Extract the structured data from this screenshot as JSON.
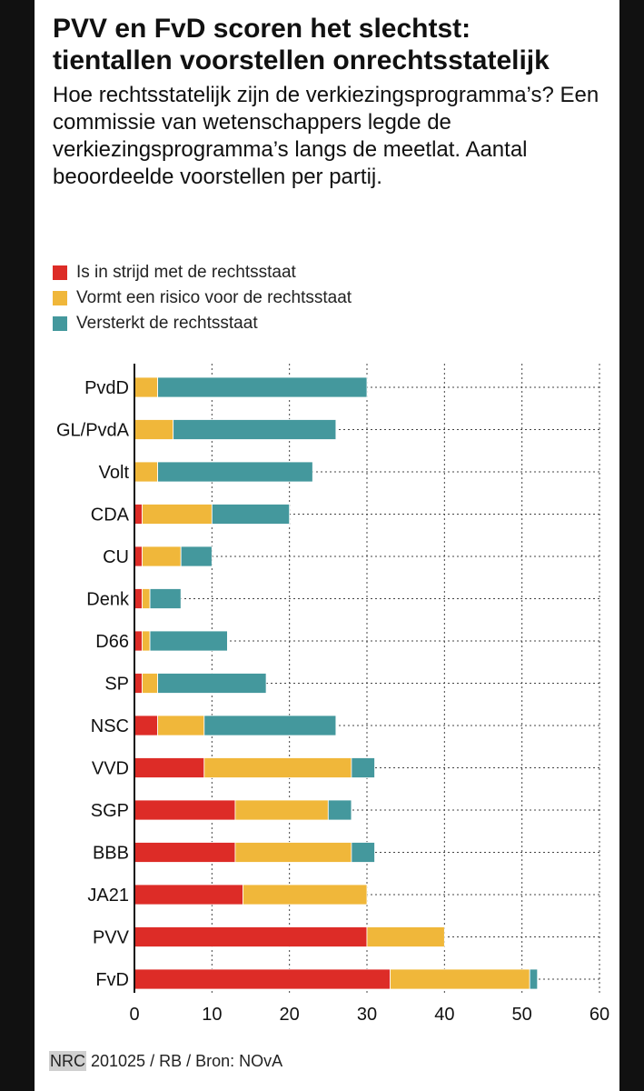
{
  "header": {
    "title_line1": "PVV en FvD scoren het slechtst:",
    "title_line2": "tientallen voorstellen onrechtsstatelijk",
    "subtitle": "Hoe rechtsstatelijk zijn de verkiezingsprogramma’s? Een commissie van wetenschappers legde de verkiezingsprogramma’s langs de meetlat. Aantal beoordeelde voorstellen per partij."
  },
  "colors": {
    "red": "#dd2c27",
    "yellow": "#f0b73a",
    "teal": "#44989d",
    "grid": "#444444",
    "axis": "#111111"
  },
  "chart_data": {
    "type": "bar",
    "orientation": "horizontal",
    "stacked": true,
    "categories": [
      "PvdD",
      "GL/PvdA",
      "Volt",
      "CDA",
      "CU",
      "Denk",
      "D66",
      "SP",
      "NSC",
      "VVD",
      "SGP",
      "BBB",
      "JA21",
      "PVV",
      "FvD"
    ],
    "series": [
      {
        "name": "Is in strijd met de rechtsstaat",
        "color": "#dd2c27",
        "values": [
          0,
          0,
          0,
          1,
          1,
          1,
          1,
          1,
          3,
          9,
          13,
          13,
          14,
          30,
          33
        ]
      },
      {
        "name": "Vormt een risico voor de rechtsstaat",
        "color": "#f0b73a",
        "values": [
          3,
          5,
          3,
          9,
          5,
          1,
          1,
          2,
          6,
          19,
          12,
          15,
          16,
          10,
          18
        ]
      },
      {
        "name": "Versterkt de rechtsstaat",
        "color": "#44989d",
        "values": [
          27,
          21,
          20,
          10,
          4,
          4,
          10,
          14,
          17,
          3,
          3,
          3,
          0,
          0,
          1
        ]
      }
    ],
    "xlim": [
      0,
      60
    ],
    "xticks": [
      "0",
      "10",
      "20",
      "30",
      "40",
      "50",
      "60"
    ],
    "grid": "vertical dashed",
    "legend_position": "top-left"
  },
  "footer": {
    "brand": "NRC",
    "credit": " 201025 / RB / Bron: NOvA"
  }
}
